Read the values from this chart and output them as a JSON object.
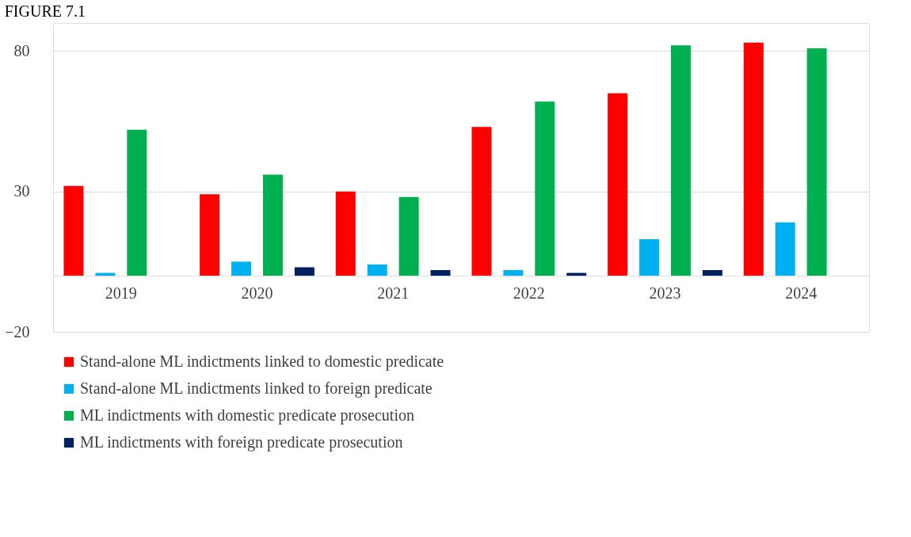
{
  "chart_data": {
    "type": "bar",
    "title": "FIGURE 7.1",
    "categories": [
      "2019",
      "2020",
      "2021",
      "2022",
      "2023",
      "2024"
    ],
    "series": [
      {
        "name": "Stand-alone ML indictments linked to domestic predicate",
        "color": "#ff0000",
        "values": [
          32,
          29,
          30,
          53,
          65,
          83
        ]
      },
      {
        "name": "Stand-alone ML indictments linked to foreign predicate",
        "color": "#00b0f0",
        "values": [
          1,
          5,
          4,
          2,
          13,
          19
        ]
      },
      {
        "name": "ML indictments with domestic predicate prosecution",
        "color": "#00b050",
        "values": [
          52,
          36,
          28,
          62,
          82,
          81
        ]
      },
      {
        "name": "ML indictments with foreign predicate prosecution",
        "color": "#002060",
        "values": [
          0,
          3,
          2,
          1,
          2,
          0
        ]
      }
    ],
    "ylim": [
      -20,
      90
    ],
    "yticks": [
      -20,
      30,
      80
    ],
    "grid": "y",
    "legend": "bottom"
  }
}
